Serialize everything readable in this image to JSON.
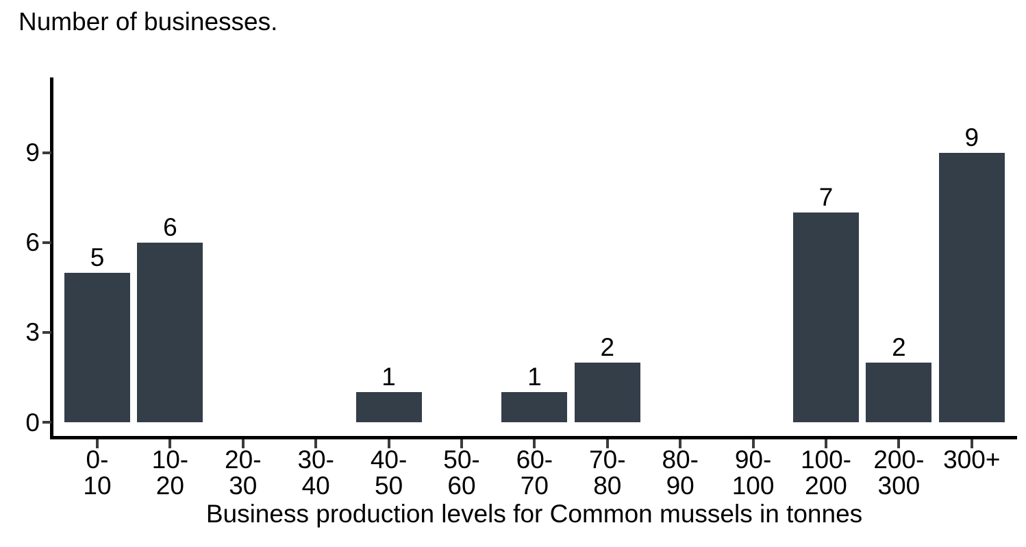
{
  "page": {
    "background": "#ffffff"
  },
  "chart_data": {
    "type": "bar",
    "title": "Number of businesses.",
    "xlabel": "Business production levels for Common mussels in tonnes",
    "ylabel": "",
    "categories": [
      "0-10",
      "10-20",
      "20-30",
      "30-40",
      "40-50",
      "50-60",
      "60-70",
      "70-80",
      "80-90",
      "90-100",
      "100-200",
      "200-300",
      "300+"
    ],
    "tick_labels": [
      "0-\n10",
      "10-\n20",
      "20-\n30",
      "30-\n40",
      "40-\n50",
      "50-\n60",
      "60-\n70",
      "70-\n80",
      "80-\n90",
      "90-\n100",
      "100-\n200",
      "200-\n300",
      "300+"
    ],
    "values": [
      5,
      6,
      0,
      0,
      1,
      0,
      1,
      2,
      0,
      0,
      7,
      2,
      9
    ],
    "yticks": [
      0,
      3,
      6,
      9
    ],
    "ylim": [
      0,
      11.5
    ],
    "grid": false,
    "legend": "none",
    "show_bar_value_labels": true,
    "value_labels_on_zero_bars": false,
    "bar_color": "#333e49",
    "axis_color": "#000000",
    "tick_color": "#3c3c3c",
    "text_color": "#000000"
  }
}
